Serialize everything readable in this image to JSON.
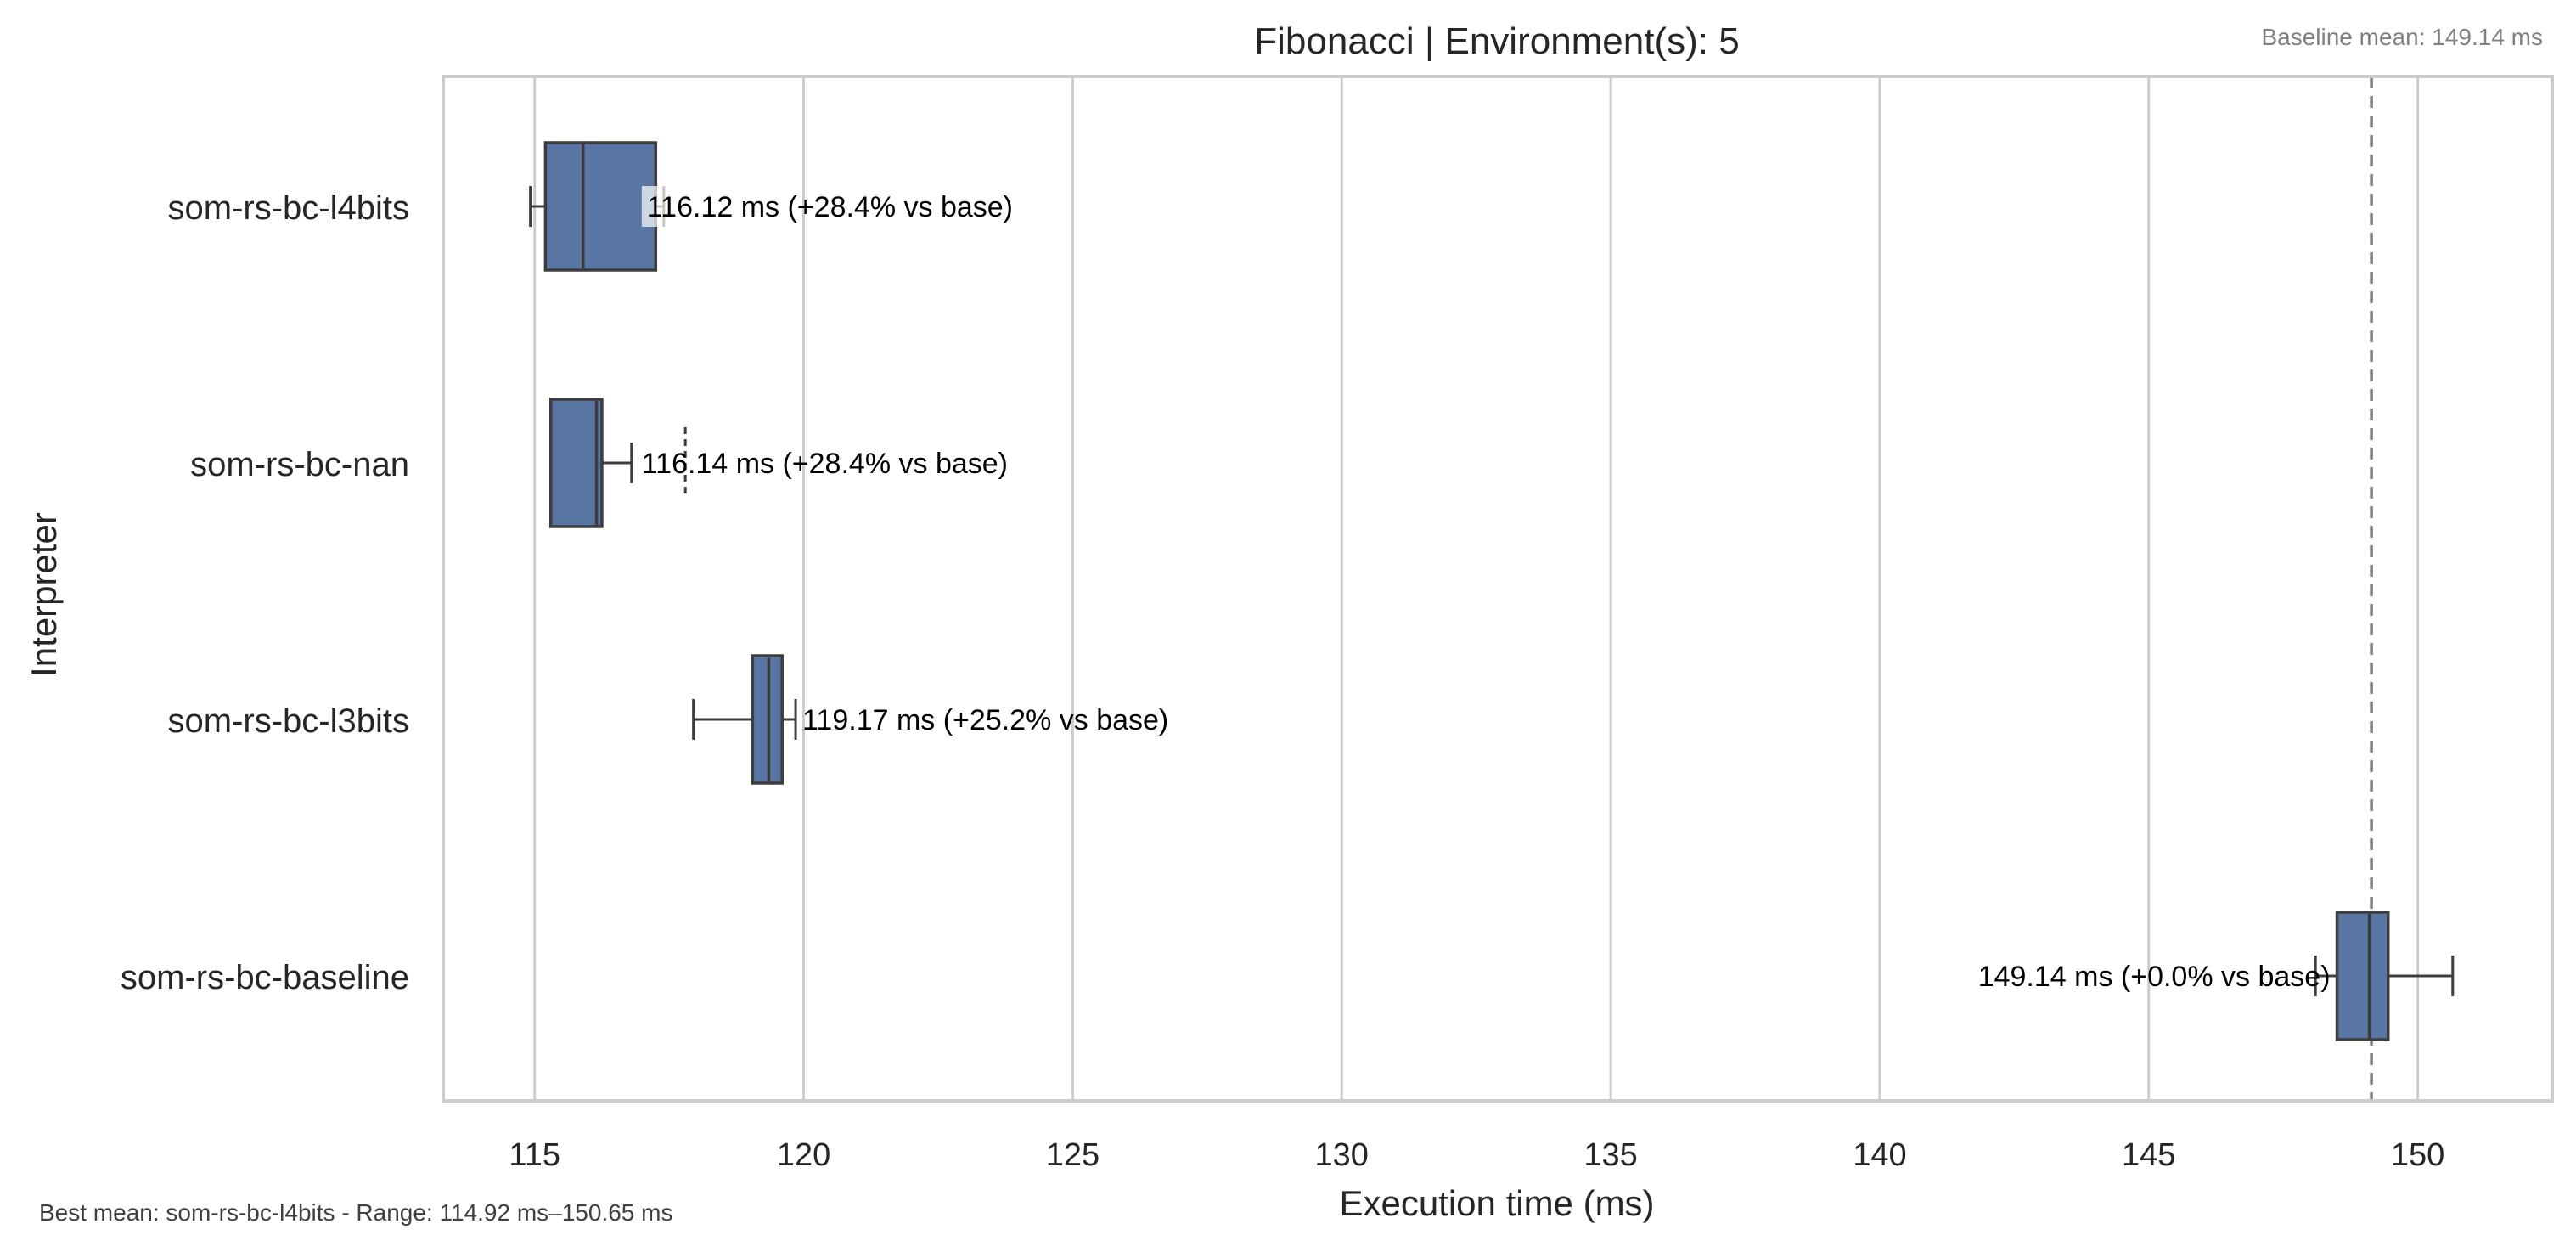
{
  "chart_data": {
    "type": "box",
    "title": "Fibonacci | Environment(s): 5",
    "xlabel": "Execution time (ms)",
    "ylabel": "Interpreter",
    "xlim": [
      113.3,
      152.5
    ],
    "xticks": [
      115,
      120,
      125,
      130,
      135,
      140,
      145,
      150
    ],
    "orientation": "horizontal",
    "grid": "vertical",
    "box_color": "#5975a4",
    "edge_color": "#3d3d3d",
    "baseline": {
      "value": 149.14,
      "style": "dashed",
      "color": "#808080",
      "label": "Baseline mean: 149.14 ms"
    },
    "categories": [
      "som-rs-bc-l4bits",
      "som-rs-bc-nan",
      "som-rs-bc-l3bits",
      "som-rs-bc-baseline"
    ],
    "series": [
      {
        "category": "som-rs-bc-l4bits",
        "whisker_low": 114.92,
        "q1": 115.2,
        "median": 115.9,
        "q3": 117.25,
        "whisker_high": 117.4,
        "outliers": [],
        "mean_label": "116.12 ms  (+28.4% vs base)"
      },
      {
        "category": "som-rs-bc-nan",
        "whisker_low": 115.3,
        "q1": 115.3,
        "median": 116.15,
        "q3": 116.25,
        "whisker_high": 116.8,
        "outliers": [
          117.8
        ],
        "mean_label": "116.14 ms  (+28.4% vs base)"
      },
      {
        "category": "som-rs-bc-l3bits",
        "whisker_low": 117.95,
        "q1": 119.05,
        "median": 119.35,
        "q3": 119.6,
        "whisker_high": 119.85,
        "outliers": [],
        "mean_label": "119.17 ms  (+25.2% vs base)"
      },
      {
        "category": "som-rs-bc-baseline",
        "whisker_low": 148.1,
        "q1": 148.5,
        "median": 149.1,
        "q3": 149.45,
        "whisker_high": 150.65,
        "outliers": [],
        "mean_label": "149.14 ms  (+0.0% vs base)"
      }
    ],
    "footer": "Best mean: som-rs-bc-l4bits - Range: 114.92 ms–150.65 ms"
  }
}
